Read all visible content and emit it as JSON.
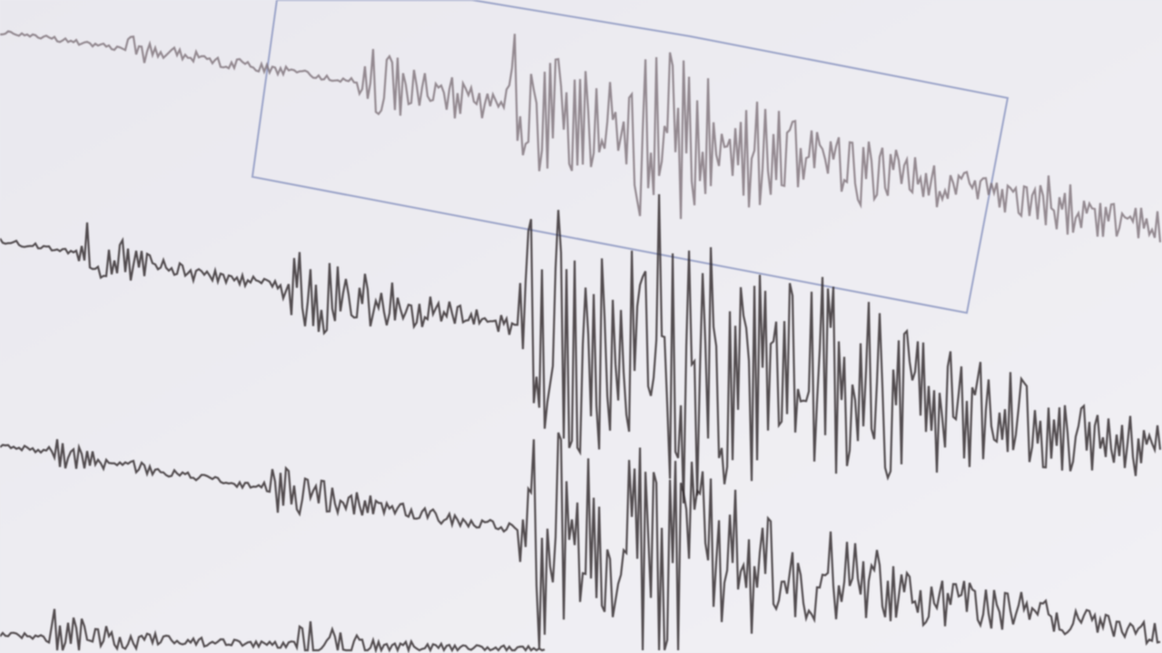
{
  "scene": {
    "subject": "seismograph-traces",
    "colors": {
      "background": "#ecebf0",
      "trace": "#2a2326",
      "trace_light": "#7d7078",
      "selection_box": "#9aa3c8"
    }
  }
}
